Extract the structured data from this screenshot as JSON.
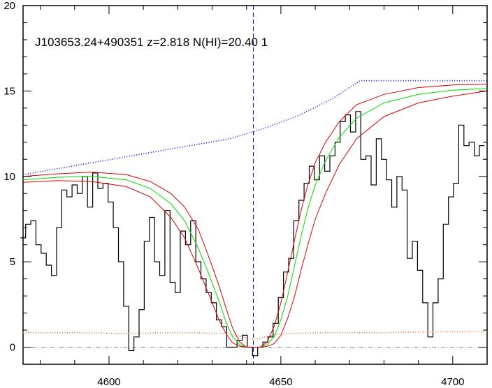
{
  "chart_data": {
    "type": "line",
    "title": "J103653.24+490351 z=2.818 N(HI)=20.40 1",
    "xlabel": "",
    "ylabel": "",
    "xlim": [
      4575,
      4710
    ],
    "ylim": [
      -1,
      20
    ],
    "xticks": [
      4600,
      4650,
      4700
    ],
    "yticks": [
      0,
      5,
      10,
      15,
      20
    ],
    "grid": false,
    "marker_x": 4642,
    "zero_line": 0,
    "colors": {
      "flux": "#000000",
      "model": "#00dd00",
      "bounds": "#dd0000",
      "continuum": "#0000ff",
      "error": "#e07020",
      "marker": "#0000cc",
      "zero": "#888888"
    },
    "series": [
      {
        "key": "flux",
        "style": "step",
        "x": [
          4575,
          4576.5,
          4578,
          4579.5,
          4581,
          4582.5,
          4584,
          4585.5,
          4587,
          4588.5,
          4590,
          4591.5,
          4593,
          4594.5,
          4596,
          4597.5,
          4599,
          4600.5,
          4602,
          4603.5,
          4605,
          4606.5,
          4608,
          4609.5,
          4611,
          4612.5,
          4614,
          4615.5,
          4617,
          4618.5,
          4620,
          4621.5,
          4623,
          4624.5,
          4626,
          4627.5,
          4629,
          4630.5,
          4632,
          4633.5,
          4635,
          4636.5,
          4638,
          4639.5,
          4641,
          4642.5,
          4644,
          4645.5,
          4647,
          4648.5,
          4650,
          4651.5,
          4653,
          4654.5,
          4656,
          4657.5,
          4659,
          4660.5,
          4662,
          4663.5,
          4665,
          4666.5,
          4668,
          4669.5,
          4671,
          4672.5,
          4674,
          4675.5,
          4677,
          4678.5,
          4680,
          4681.5,
          4683,
          4684.5,
          4686,
          4687.5,
          4689,
          4690.5,
          4692,
          4693.5,
          4695,
          4696.5,
          4698,
          4699.5,
          4701,
          4702.5,
          4704,
          4705.5,
          4707,
          4708.5
        ],
        "values": [
          6.4,
          7.2,
          7.4,
          6.0,
          5.5,
          4.8,
          4.2,
          7.0,
          9.2,
          8.8,
          9.5,
          9.0,
          10.0,
          8.2,
          10.2,
          9.3,
          9.6,
          8.5,
          7.0,
          5.0,
          2.4,
          -0.2,
          0.6,
          2.2,
          6.2,
          7.6,
          5.0,
          4.2,
          8.0,
          3.8,
          3.2,
          6.8,
          6.0,
          7.4,
          5.0,
          4.0,
          3.2,
          2.6,
          1.6,
          1.2,
          0.0,
          0.0,
          0.4,
          0.7,
          0.0,
          -0.5,
          0.0,
          0.3,
          0.6,
          1.4,
          2.9,
          4.4,
          5.2,
          7.4,
          8.6,
          9.6,
          10.6,
          9.8,
          11.2,
          10.3,
          11.2,
          12.0,
          13.2,
          13.6,
          12.6,
          13.8,
          11.0,
          11.2,
          9.5,
          12.2,
          11.0,
          9.8,
          8.2,
          10.0,
          9.2,
          5.2,
          6.2,
          4.5,
          2.6,
          0.6,
          2.6,
          4.0,
          7.2,
          8.8,
          9.6,
          13.0,
          11.8,
          12.0,
          11.2,
          11.8
        ]
      },
      {
        "key": "continuum",
        "style": "dotted",
        "x": [
          4575,
          4585,
          4595,
          4605,
          4615,
          4625,
          4635,
          4645,
          4655,
          4665,
          4673,
          4680,
          4690,
          4700,
          4710
        ],
        "values": [
          10.1,
          10.45,
          10.8,
          11.15,
          11.5,
          11.85,
          12.2,
          12.8,
          13.55,
          14.55,
          15.6,
          15.6,
          15.6,
          15.6,
          15.6
        ]
      },
      {
        "key": "error",
        "style": "dotted",
        "x": [
          4575,
          4590,
          4605,
          4620,
          4635,
          4642,
          4650,
          4665,
          4680,
          4695,
          4710
        ],
        "values": [
          0.85,
          0.85,
          0.8,
          0.85,
          0.8,
          0.45,
          0.8,
          0.85,
          0.85,
          0.9,
          0.9
        ]
      },
      {
        "key": "model",
        "style": "solid",
        "x": [
          4575,
          4585,
          4595,
          4605,
          4612,
          4618,
          4622,
          4626,
          4629,
          4632,
          4634,
          4636,
          4638,
          4640,
          4642,
          4644,
          4646,
          4648,
          4650,
          4652,
          4654,
          4656,
          4658,
          4660,
          4663,
          4667,
          4672,
          4680,
          4690,
          4700,
          4710
        ],
        "values": [
          9.8,
          9.95,
          10.0,
          9.8,
          9.3,
          8.4,
          7.4,
          5.8,
          4.3,
          2.7,
          1.5,
          0.6,
          0.15,
          0.0,
          0.0,
          0.0,
          0.15,
          0.6,
          1.6,
          3.0,
          4.8,
          6.6,
          8.2,
          9.5,
          10.9,
          12.3,
          13.4,
          14.3,
          14.8,
          15.05,
          15.15
        ]
      },
      {
        "key": "upper",
        "style": "solid",
        "x": [
          4575,
          4585,
          4595,
          4605,
          4612,
          4618,
          4622,
          4626,
          4629,
          4632,
          4634,
          4636,
          4638,
          4640,
          4642,
          4644,
          4646,
          4648,
          4650,
          4652,
          4654,
          4656,
          4658,
          4660,
          4663,
          4667,
          4672,
          4680,
          4690,
          4700,
          4710
        ],
        "values": [
          10.0,
          10.15,
          10.25,
          10.1,
          9.7,
          9.0,
          8.2,
          6.9,
          5.3,
          3.6,
          2.3,
          1.1,
          0.3,
          0.0,
          0.0,
          0.0,
          0.3,
          1.2,
          2.6,
          4.4,
          6.3,
          8.1,
          9.6,
          10.8,
          12.0,
          13.2,
          14.2,
          14.8,
          15.2,
          15.35,
          15.4
        ]
      },
      {
        "key": "lower",
        "style": "solid",
        "x": [
          4575,
          4585,
          4595,
          4605,
          4612,
          4618,
          4622,
          4626,
          4629,
          4632,
          4634,
          4636,
          4638,
          4640,
          4642,
          4644,
          4646,
          4648,
          4650,
          4652,
          4654,
          4656,
          4658,
          4660,
          4663,
          4667,
          4672,
          4680,
          4690,
          4700,
          4710
        ],
        "values": [
          9.65,
          9.75,
          9.7,
          9.4,
          8.8,
          7.6,
          6.4,
          4.6,
          3.1,
          1.6,
          0.8,
          0.25,
          0.05,
          0.0,
          0.0,
          0.0,
          0.05,
          0.2,
          0.7,
          1.7,
          3.0,
          4.6,
          6.1,
          7.5,
          9.0,
          10.7,
          12.2,
          13.5,
          14.3,
          14.7,
          15.0
        ]
      }
    ]
  }
}
